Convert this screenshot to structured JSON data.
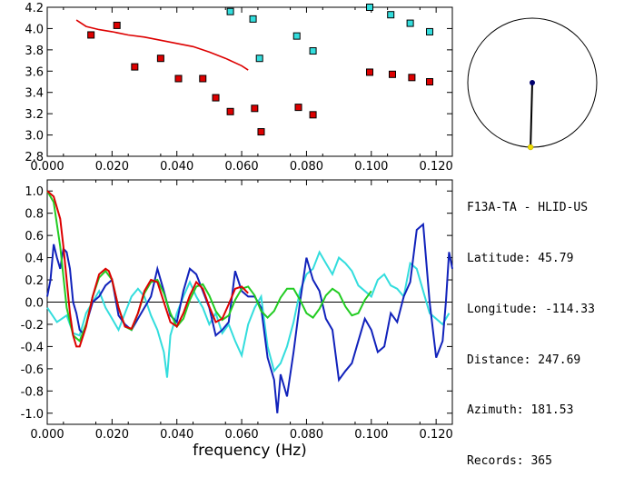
{
  "station": {
    "title": "F13A-TA - HLID-US",
    "rows": [
      {
        "label": "Latitude:",
        "value": "45.79"
      },
      {
        "label": "Longitude:",
        "value": "-114.33"
      },
      {
        "label": "Distance:",
        "value": "247.69"
      },
      {
        "label": "Azimuth:",
        "value": "181.53"
      },
      {
        "label": "Records:",
        "value": "365"
      }
    ],
    "azimuth_deg": 181.53,
    "distance_fraction": 0.5
  },
  "colors": {
    "red": "#dd0000",
    "cyan": "#33dddd",
    "blue": "#1122bb",
    "green": "#22cc22",
    "navy": "#00006e",
    "yellow": "#eedd00"
  },
  "chart_data": [
    {
      "type": "scatter",
      "name": "top",
      "xlim": [
        0.0,
        0.125
      ],
      "ylim": [
        2.8,
        4.2
      ],
      "xticks": [
        "0.000",
        "0.020",
        "0.040",
        "0.060",
        "0.080",
        "0.100",
        "0.120"
      ],
      "yticks": [
        "2.8",
        "3.0",
        "3.2",
        "3.4",
        "3.6",
        "3.8",
        "4.0",
        "4.2"
      ],
      "series": [
        {
          "color": "red",
          "marker": "square",
          "x": [
            0.0135,
            0.0215,
            0.027,
            0.035,
            0.0405,
            0.048,
            0.052,
            0.0565,
            0.064,
            0.066,
            0.0775,
            0.082,
            0.0995,
            0.1065,
            0.1125,
            0.118
          ],
          "y": [
            3.94,
            4.03,
            3.64,
            3.72,
            3.53,
            3.53,
            3.35,
            3.22,
            3.25,
            3.03,
            3.26,
            3.19,
            3.59,
            3.57,
            3.54,
            3.5
          ]
        },
        {
          "color": "cyan",
          "marker": "square",
          "x": [
            0.0565,
            0.0635,
            0.0655,
            0.077,
            0.082,
            0.0995,
            0.106,
            0.112,
            0.118
          ],
          "y": [
            4.16,
            4.09,
            3.72,
            3.93,
            3.79,
            4.2,
            4.13,
            4.05,
            3.97
          ]
        },
        {
          "color": "red",
          "marker": "line",
          "x": [
            0.009,
            0.012,
            0.016,
            0.02,
            0.025,
            0.03,
            0.035,
            0.04,
            0.045,
            0.05,
            0.055,
            0.06,
            0.062
          ],
          "y": [
            4.08,
            4.02,
            3.99,
            3.97,
            3.94,
            3.92,
            3.89,
            3.86,
            3.83,
            3.78,
            3.72,
            3.65,
            3.61
          ]
        }
      ]
    },
    {
      "type": "line",
      "name": "bottom",
      "xlabel": "frequency (Hz)",
      "xlim": [
        0.0,
        0.125
      ],
      "ylim": [
        -1.1,
        1.1
      ],
      "xticks": [
        "0.000",
        "0.020",
        "0.040",
        "0.060",
        "0.080",
        "0.100",
        "0.120"
      ],
      "yticks": [
        "-1.0",
        "-0.8",
        "-0.6",
        "-0.4",
        "-0.2",
        "0.0",
        "0.2",
        "0.4",
        "0.6",
        "0.8",
        "1.0"
      ],
      "zero_line": true,
      "series": [
        {
          "color": "cyan",
          "x": [
            0.0,
            0.003,
            0.006,
            0.008,
            0.01,
            0.012,
            0.014,
            0.016,
            0.018,
            0.02,
            0.022,
            0.024,
            0.026,
            0.028,
            0.03,
            0.032,
            0.034,
            0.036,
            0.037,
            0.038,
            0.04,
            0.042,
            0.044,
            0.046,
            0.048,
            0.05,
            0.052,
            0.054,
            0.056,
            0.058,
            0.06,
            0.062,
            0.064,
            0.066,
            0.068,
            0.07,
            0.072,
            0.074,
            0.076,
            0.078,
            0.08,
            0.082,
            0.084,
            0.086,
            0.088,
            0.09,
            0.092,
            0.094,
            0.096,
            0.098,
            0.1,
            0.102,
            0.104,
            0.106,
            0.108,
            0.11,
            0.112,
            0.114,
            0.116,
            0.118,
            0.12,
            0.122,
            0.124
          ],
          "y": [
            -0.05,
            -0.18,
            -0.12,
            -0.28,
            -0.3,
            -0.1,
            0.0,
            0.1,
            -0.05,
            -0.15,
            -0.25,
            -0.1,
            0.05,
            0.12,
            0.05,
            -0.12,
            -0.25,
            -0.45,
            -0.68,
            -0.3,
            -0.1,
            0.05,
            0.18,
            0.05,
            -0.05,
            -0.2,
            -0.1,
            -0.28,
            -0.2,
            -0.35,
            -0.48,
            -0.2,
            -0.05,
            0.05,
            -0.4,
            -0.62,
            -0.55,
            -0.4,
            -0.18,
            0.1,
            0.25,
            0.3,
            0.45,
            0.35,
            0.25,
            0.4,
            0.35,
            0.28,
            0.15,
            0.1,
            0.05,
            0.2,
            0.25,
            0.15,
            0.12,
            0.05,
            0.35,
            0.3,
            0.1,
            -0.1,
            -0.15,
            -0.2,
            -0.1
          ]
        },
        {
          "color": "blue",
          "x": [
            0.0,
            0.001,
            0.002,
            0.003,
            0.004,
            0.005,
            0.006,
            0.007,
            0.008,
            0.009,
            0.01,
            0.011,
            0.012,
            0.014,
            0.016,
            0.018,
            0.02,
            0.022,
            0.024,
            0.026,
            0.028,
            0.03,
            0.032,
            0.034,
            0.036,
            0.038,
            0.04,
            0.042,
            0.044,
            0.046,
            0.048,
            0.05,
            0.052,
            0.054,
            0.056,
            0.058,
            0.06,
            0.062,
            0.064,
            0.066,
            0.068,
            0.07,
            0.071,
            0.072,
            0.074,
            0.076,
            0.078,
            0.08,
            0.082,
            0.084,
            0.086,
            0.088,
            0.09,
            0.092,
            0.094,
            0.096,
            0.098,
            0.1,
            0.102,
            0.104,
            0.106,
            0.108,
            0.11,
            0.112,
            0.114,
            0.116,
            0.118,
            0.12,
            0.122,
            0.123,
            0.124,
            0.125
          ],
          "y": [
            0.05,
            0.2,
            0.52,
            0.4,
            0.3,
            0.48,
            0.45,
            0.3,
            0.0,
            -0.1,
            -0.25,
            -0.28,
            -0.2,
            0.0,
            0.05,
            0.15,
            0.2,
            -0.12,
            -0.2,
            -0.25,
            -0.15,
            -0.05,
            0.05,
            0.3,
            0.1,
            -0.12,
            -0.18,
            0.1,
            0.3,
            0.25,
            0.1,
            -0.05,
            -0.3,
            -0.25,
            -0.18,
            0.28,
            0.1,
            0.05,
            0.05,
            -0.05,
            -0.5,
            -0.7,
            -1.0,
            -0.65,
            -0.85,
            -0.45,
            0.0,
            0.4,
            0.2,
            0.1,
            -0.15,
            -0.25,
            -0.7,
            -0.62,
            -0.55,
            -0.35,
            -0.15,
            -0.25,
            -0.45,
            -0.4,
            -0.1,
            -0.18,
            0.05,
            0.18,
            0.65,
            0.7,
            0.0,
            -0.5,
            -0.35,
            0.0,
            0.45,
            0.3
          ]
        },
        {
          "color": "green",
          "x": [
            0.0,
            0.002,
            0.004,
            0.006,
            0.008,
            0.01,
            0.012,
            0.014,
            0.016,
            0.018,
            0.02,
            0.022,
            0.024,
            0.026,
            0.028,
            0.03,
            0.032,
            0.034,
            0.036,
            0.038,
            0.04,
            0.042,
            0.044,
            0.046,
            0.048,
            0.05,
            0.052,
            0.054,
            0.056,
            0.058,
            0.06,
            0.062,
            0.064,
            0.066,
            0.068,
            0.07,
            0.072,
            0.074,
            0.076,
            0.078,
            0.08,
            0.082,
            0.084,
            0.086,
            0.088,
            0.09,
            0.092,
            0.094,
            0.096,
            0.098,
            0.1
          ],
          "y": [
            1.0,
            0.9,
            0.5,
            -0.05,
            -0.3,
            -0.35,
            -0.2,
            0.05,
            0.22,
            0.28,
            0.2,
            -0.05,
            -0.22,
            -0.25,
            -0.1,
            0.08,
            0.18,
            0.2,
            0.08,
            -0.1,
            -0.22,
            -0.15,
            0.02,
            0.14,
            0.16,
            0.06,
            -0.08,
            -0.16,
            -0.12,
            0.02,
            0.12,
            0.14,
            0.06,
            -0.08,
            -0.14,
            -0.08,
            0.04,
            0.12,
            0.12,
            0.02,
            -0.1,
            -0.14,
            -0.06,
            0.06,
            0.12,
            0.08,
            -0.04,
            -0.12,
            -0.1,
            0.02,
            0.1
          ]
        },
        {
          "color": "red",
          "x": [
            0.0,
            0.002,
            0.004,
            0.005,
            0.006,
            0.007,
            0.008,
            0.009,
            0.01,
            0.012,
            0.014,
            0.016,
            0.018,
            0.019,
            0.02,
            0.022,
            0.024,
            0.026,
            0.028,
            0.03,
            0.032,
            0.034,
            0.036,
            0.038,
            0.04,
            0.042,
            0.044,
            0.046,
            0.048,
            0.05,
            0.052,
            0.054,
            0.056,
            0.058,
            0.06,
            0.062
          ],
          "y": [
            1.0,
            0.95,
            0.75,
            0.5,
            0.2,
            -0.1,
            -0.3,
            -0.4,
            -0.4,
            -0.22,
            0.05,
            0.25,
            0.3,
            0.28,
            0.2,
            -0.05,
            -0.22,
            -0.24,
            -0.1,
            0.1,
            0.2,
            0.18,
            0.0,
            -0.18,
            -0.22,
            -0.1,
            0.06,
            0.18,
            0.12,
            -0.04,
            -0.18,
            -0.15,
            -0.02,
            0.12,
            0.14,
            0.08
          ]
        }
      ]
    }
  ]
}
